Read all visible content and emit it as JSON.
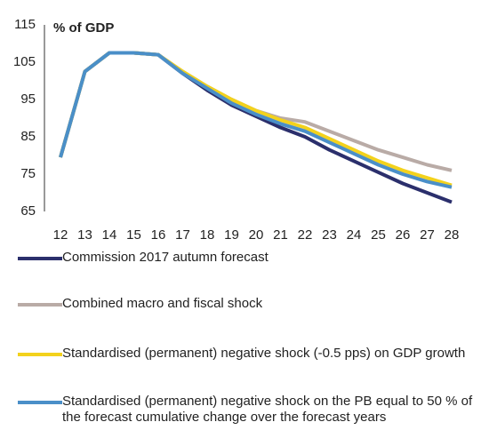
{
  "chart_data": {
    "type": "line",
    "subtitle": "% of GDP",
    "categories": [
      "12",
      "13",
      "14",
      "15",
      "16",
      "17",
      "18",
      "19",
      "20",
      "21",
      "22",
      "23",
      "24",
      "25",
      "26",
      "27",
      "28"
    ],
    "ylim": [
      65,
      115
    ],
    "yticks": [
      65,
      75,
      85,
      95,
      105,
      115
    ],
    "series": [
      {
        "name": "Commission 2017 autumn forecast",
        "color": "#2b2f6c",
        "values": [
          79.5,
          102.5,
          107.5,
          107.5,
          107,
          102,
          97.5,
          93.5,
          90.5,
          87.5,
          85,
          81.5,
          78.5,
          75.5,
          72.5,
          70,
          67.5
        ]
      },
      {
        "name": "Combined macro and fiscal shock",
        "color": "#b9aba6",
        "values": [
          79.5,
          102.5,
          107.5,
          107.5,
          107,
          102.5,
          98.5,
          95,
          92,
          90,
          89,
          86.5,
          84,
          81.5,
          79.5,
          77.5,
          76
        ]
      },
      {
        "name": "Standardised (permanent) negative shock (-0.5 pps) on GDP growth",
        "color": "#f3d21c",
        "values": [
          79.5,
          102.5,
          107.5,
          107.5,
          107,
          102.5,
          98.5,
          95,
          92,
          89.5,
          87.5,
          84.5,
          81.5,
          78.5,
          76,
          74,
          72
        ]
      },
      {
        "name": "Standardised (permanent) negative shock on the PB equal to 50 % of the forecast cumulative change over the forecast years",
        "color": "#4a8fc8",
        "values": [
          79.5,
          102.5,
          107.5,
          107.5,
          107,
          102,
          98,
          94,
          91,
          88.5,
          86.5,
          83.5,
          80.5,
          77.5,
          75,
          73,
          71.5
        ]
      }
    ]
  }
}
